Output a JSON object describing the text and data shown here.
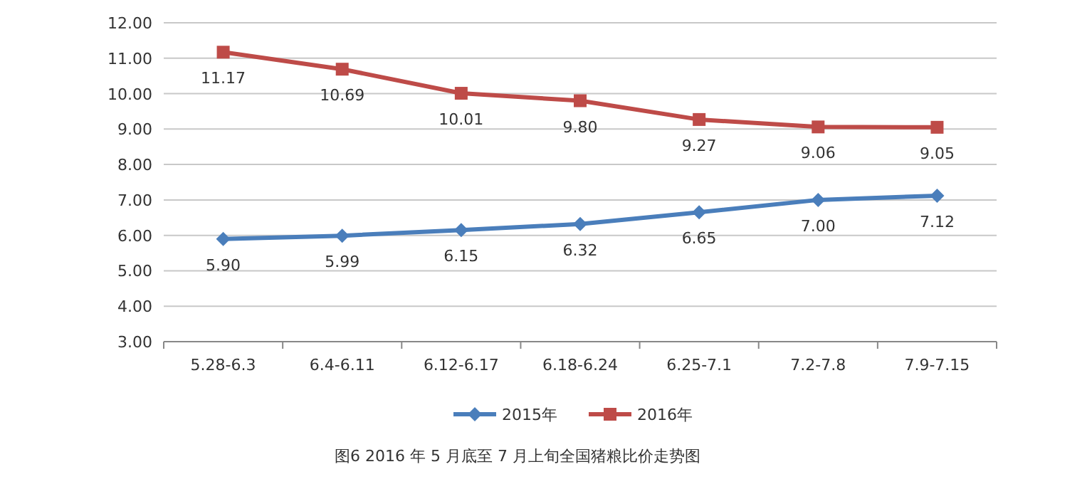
{
  "chart_data": {
    "type": "line",
    "title": "图6   2016 年 5 月底至 7 月上旬全国猪粮比价走势图",
    "categories": [
      "5.28-6.3",
      "6.4-6.11",
      "6.12-6.17",
      "6.18-6.24",
      "6.25-7.1",
      "7.2-7.8",
      "7.9-7.15"
    ],
    "series": [
      {
        "name": "2015年",
        "color": "#4a7ebb",
        "marker": "diamond",
        "values": [
          5.9,
          5.99,
          6.15,
          6.32,
          6.65,
          7.0,
          7.12
        ],
        "value_labels": [
          "5.90",
          "5.99",
          "6.15",
          "6.32",
          "6.65",
          "7.00",
          "7.12"
        ]
      },
      {
        "name": "2016年",
        "color": "#be4b48",
        "marker": "square",
        "values": [
          11.17,
          10.69,
          10.01,
          9.8,
          9.27,
          9.06,
          9.05
        ],
        "value_labels": [
          "11.17",
          "10.69",
          "10.01",
          "9.80",
          "9.27",
          "9.06",
          "9.05"
        ]
      }
    ],
    "ylim": [
      3,
      12
    ],
    "yticks": [
      {
        "value": 3,
        "label": "3.00"
      },
      {
        "value": 4,
        "label": "4.00"
      },
      {
        "value": 5,
        "label": "5.00"
      },
      {
        "value": 6,
        "label": "6.00"
      },
      {
        "value": 7,
        "label": "7.00"
      },
      {
        "value": 8,
        "label": "8.00"
      },
      {
        "value": 9,
        "label": "9.00"
      },
      {
        "value": 10,
        "label": "10.00"
      },
      {
        "value": 11,
        "label": "11.00"
      },
      {
        "value": 12,
        "label": "12.00"
      }
    ],
    "grid": "y",
    "legend": "bottom"
  }
}
